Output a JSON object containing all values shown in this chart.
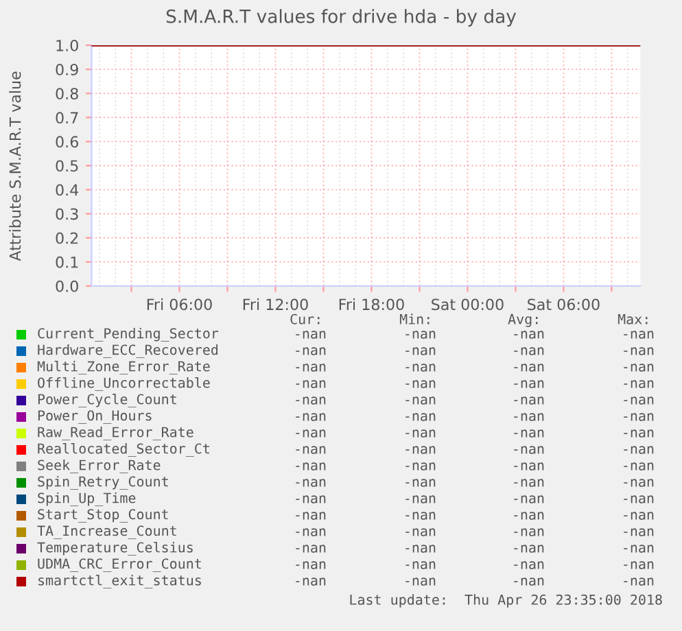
{
  "chart_data": {
    "type": "line",
    "title": "S.M.A.R.T values for drive hda - by day",
    "ylabel": "Attribute S.M.A.R.T value",
    "categories": [
      null,
      "Fri 06:00",
      null,
      "Fri 12:00",
      null,
      "Fri 18:00",
      null,
      "Sat 00:00",
      null,
      "Sat 06:00",
      null
    ],
    "ylim": [
      0,
      1.0
    ],
    "yticks": [
      {
        "value": 0,
        "label": "0.0"
      },
      0.1,
      0.2,
      0.3,
      0.4,
      0.5,
      0.6,
      0.7,
      0.8,
      0.9,
      {
        "value": 1.0,
        "label": "1.0"
      }
    ],
    "grid": true,
    "legend": "bottom",
    "ref_lines": [
      {
        "axis": "y",
        "value": 1.0,
        "color": "#990000"
      }
    ],
    "series": [
      {
        "name": "Current_Pending_Sector",
        "color": "#00cc00",
        "values": [
          null,
          null,
          null,
          null,
          null,
          null,
          null,
          null,
          null,
          null,
          null
        ]
      },
      {
        "name": "Hardware_ECC_Recovered",
        "color": "#0066b3",
        "values": [
          null,
          null,
          null,
          null,
          null,
          null,
          null,
          null,
          null,
          null,
          null
        ]
      },
      {
        "name": "Multi_Zone_Error_Rate",
        "color": "#ff8000",
        "values": [
          null,
          null,
          null,
          null,
          null,
          null,
          null,
          null,
          null,
          null,
          null
        ]
      },
      {
        "name": "Offline_Uncorrectable",
        "color": "#ffcc00",
        "values": [
          null,
          null,
          null,
          null,
          null,
          null,
          null,
          null,
          null,
          null,
          null
        ]
      },
      {
        "name": "Power_Cycle_Count",
        "color": "#330099",
        "values": [
          null,
          null,
          null,
          null,
          null,
          null,
          null,
          null,
          null,
          null,
          null
        ]
      },
      {
        "name": "Power_On_Hours",
        "color": "#990099",
        "values": [
          null,
          null,
          null,
          null,
          null,
          null,
          null,
          null,
          null,
          null,
          null
        ]
      },
      {
        "name": "Raw_Read_Error_Rate",
        "color": "#ccff00",
        "values": [
          null,
          null,
          null,
          null,
          null,
          null,
          null,
          null,
          null,
          null,
          null
        ]
      },
      {
        "name": "Reallocated_Sector_Ct",
        "color": "#ff0000",
        "values": [
          null,
          null,
          null,
          null,
          null,
          null,
          null,
          null,
          null,
          null,
          null
        ]
      },
      {
        "name": "Seek_Error_Rate",
        "color": "#808080",
        "values": [
          null,
          null,
          null,
          null,
          null,
          null,
          null,
          null,
          null,
          null,
          null
        ]
      },
      {
        "name": "Spin_Retry_Count",
        "color": "#008f00",
        "values": [
          null,
          null,
          null,
          null,
          null,
          null,
          null,
          null,
          null,
          null,
          null
        ]
      },
      {
        "name": "Spin_Up_Time",
        "color": "#00487d",
        "values": [
          null,
          null,
          null,
          null,
          null,
          null,
          null,
          null,
          null,
          null,
          null
        ]
      },
      {
        "name": "Start_Stop_Count",
        "color": "#b35a00",
        "values": [
          null,
          null,
          null,
          null,
          null,
          null,
          null,
          null,
          null,
          null,
          null
        ]
      },
      {
        "name": "TA_Increase_Count",
        "color": "#b38f00",
        "values": [
          null,
          null,
          null,
          null,
          null,
          null,
          null,
          null,
          null,
          null,
          null
        ]
      },
      {
        "name": "Temperature_Celsius",
        "color": "#6b006b",
        "values": [
          null,
          null,
          null,
          null,
          null,
          null,
          null,
          null,
          null,
          null,
          null
        ]
      },
      {
        "name": "UDMA_CRC_Error_Count",
        "color": "#8fb300",
        "values": [
          null,
          null,
          null,
          null,
          null,
          null,
          null,
          null,
          null,
          null,
          null
        ]
      },
      {
        "name": "smartctl_exit_status",
        "color": "#b30000",
        "values": [
          null,
          null,
          null,
          null,
          null,
          null,
          null,
          null,
          null,
          null,
          null
        ]
      }
    ],
    "annotations": [
      "Cur:",
      "Min:",
      "Avg:",
      "Max:",
      "-nan",
      "-nan",
      "-nan",
      "-nan",
      "-nan",
      "-nan",
      "-nan",
      "-nan",
      "-nan",
      "-nan",
      "-nan",
      "-nan",
      "-nan",
      "-nan",
      "-nan",
      "-nan",
      "-nan",
      "-nan",
      "-nan",
      "-nan",
      "-nan",
      "-nan",
      "-nan",
      "-nan",
      "-nan",
      "-nan",
      "-nan",
      "-nan",
      "-nan",
      "-nan",
      "-nan",
      "-nan",
      "-nan",
      "-nan",
      "-nan",
      "-nan",
      "-nan",
      "-nan",
      "-nan",
      "-nan",
      "-nan",
      "-nan",
      "-nan",
      "-nan",
      "-nan",
      "-nan",
      "-nan",
      "-nan",
      "-nan",
      "-nan",
      "-nan",
      "-nan",
      "-nan",
      "-nan",
      "-nan",
      "-nan",
      "-nan",
      "-nan",
      "-nan",
      "-nan",
      "-nan",
      "-nan",
      "-nan",
      "-nan",
      "Last update:  Thu Apr 26 23:35:00 2018"
    ]
  }
}
